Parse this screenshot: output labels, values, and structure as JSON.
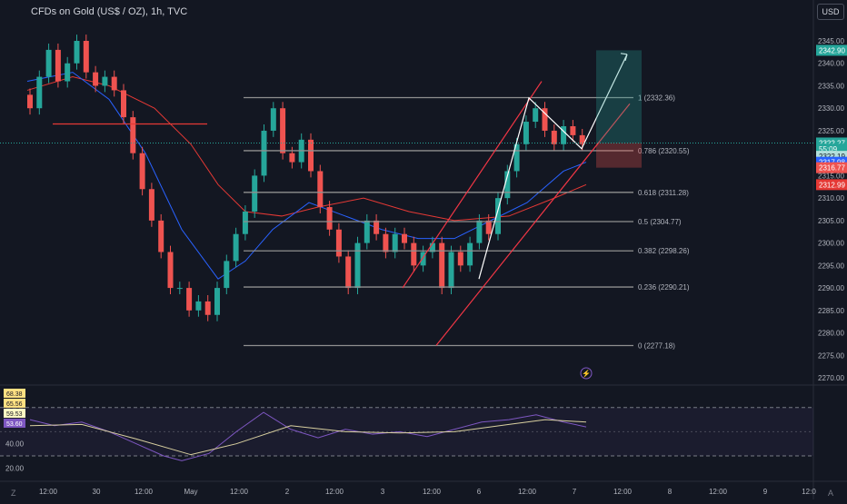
{
  "symbol_title": "CFDs on Gold (US$ / OZ), 1h, TVC",
  "currency_button": "USD",
  "corner_left": "Z",
  "corner_right": "A",
  "colors": {
    "background": "#131722",
    "up": "#26a69a",
    "down": "#ef5350",
    "ma_fast": "#2962ff",
    "ma_slow": "#e53935",
    "fib_line": "#8f8f8f",
    "channel": "#f23645",
    "rsi": "#7e57c2",
    "rsi_ma": "#d9d0a0"
  },
  "price_axis_ticks": [
    "2345.00",
    "2340.00",
    "2335.00",
    "2330.00",
    "2325.00",
    "2320.00",
    "2315.00",
    "2310.00",
    "2305.00",
    "2300.00",
    "2295.00",
    "2290.00",
    "2285.00",
    "2280.00",
    "2275.00",
    "2270.00"
  ],
  "price_tags": [
    {
      "id": "target",
      "label": "2342.90",
      "color": "#26a69a",
      "price": 2342.9
    },
    {
      "id": "last",
      "label": "2322.27",
      "color": "#26a69a",
      "price": 2322.27
    },
    {
      "id": "countdown",
      "label": "55:09",
      "color": "#26a69a",
      "price": 2320.9
    },
    {
      "id": "ma-a",
      "label": "2322.19",
      "color": "#b2dfdb",
      "price": 2319.3
    },
    {
      "id": "ma-blue",
      "label": "2317.98",
      "color": "#2962ff",
      "price": 2317.98
    },
    {
      "id": "stop",
      "label": "2316.77",
      "color": "#ef5350",
      "price": 2316.77
    },
    {
      "id": "ma-red",
      "label": "2312.99",
      "color": "#e53935",
      "price": 2312.99
    }
  ],
  "fib_levels": [
    {
      "label": "1 (2332.36)",
      "price": 2332.36
    },
    {
      "label": "0.786 (2320.55)",
      "price": 2320.55
    },
    {
      "label": "0.618 (2311.28)",
      "price": 2311.28
    },
    {
      "label": "0.5 (2304.77)",
      "price": 2304.77
    },
    {
      "label": "0.382 (2298.26)",
      "price": 2298.26
    },
    {
      "label": "0.236 (2290.21)",
      "price": 2290.21
    },
    {
      "label": "0 (2277.18)",
      "price": 2277.18
    }
  ],
  "time_axis_labels": [
    "12:00",
    "30",
    "12:00",
    "May",
    "12:00",
    "2",
    "12:00",
    "3",
    "12:00",
    "6",
    "12:00",
    "7",
    "12:00",
    "8",
    "12:00",
    "9",
    "12:0"
  ],
  "rsi_axis_ticks": [
    "40.00",
    "20.00"
  ],
  "rsi_tags": [
    {
      "label": "68.38",
      "color": "#ffe082",
      "value": 68.38
    },
    {
      "label": "65.56",
      "color": "#ffe082",
      "value": 65.56
    },
    {
      "label": "59.53",
      "color": "#fff9c4",
      "value": 59.53
    },
    {
      "label": "53.60",
      "color": "#7e57c2",
      "value": 53.6
    }
  ],
  "chart_data": {
    "type": "candlestick",
    "title": "CFDs on Gold (US$ / OZ), 1h, TVC",
    "ylim": [
      2265,
      2350
    ],
    "fibonacci": {
      "high": 2332.36,
      "low": 2277.18
    },
    "target_price": 2342.9,
    "last_price": 2322.27,
    "stop_price": 2316.77
  }
}
